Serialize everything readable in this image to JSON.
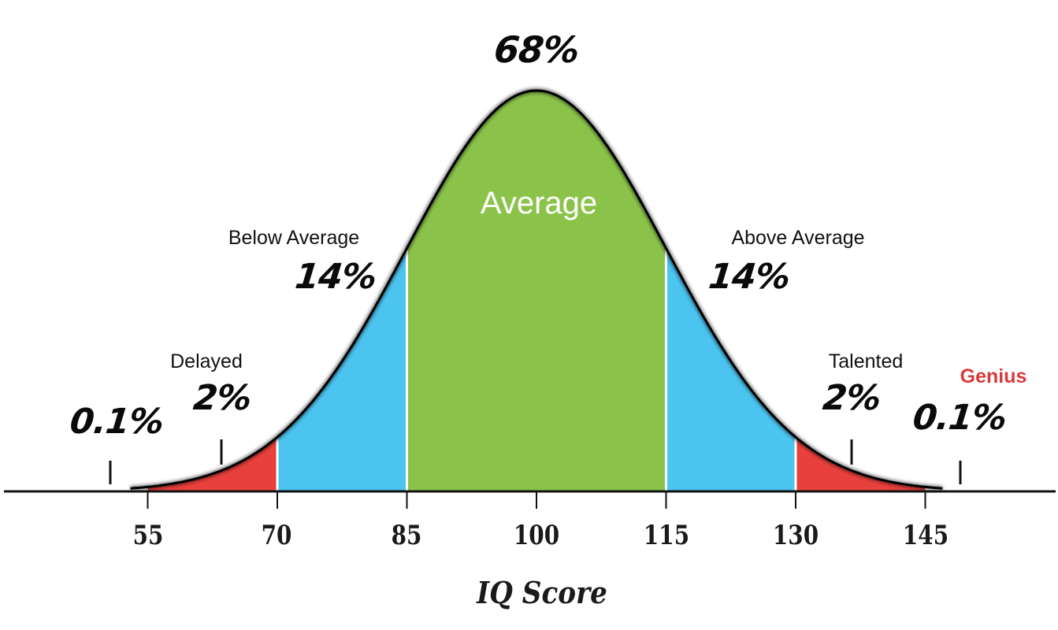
{
  "chart_data": {
    "type": "area",
    "title": "",
    "xlabel": "IQ Score",
    "ylabel": "",
    "x_ticks": [
      55,
      70,
      85,
      100,
      115,
      130,
      145
    ],
    "xlim": [
      40,
      160
    ],
    "grid": false,
    "legend": "none",
    "distribution": {
      "kind": "normal",
      "mean": 100,
      "sd": 15
    },
    "regions": [
      {
        "name": "Genius (low tail)",
        "range": [
          null,
          55
        ],
        "percent": "0.1%",
        "label": "",
        "color": "#ffffff"
      },
      {
        "name": "Delayed",
        "range": [
          55,
          70
        ],
        "percent": "2%",
        "label": "Delayed",
        "color": "#e8403d"
      },
      {
        "name": "Below Average",
        "range": [
          70,
          85
        ],
        "percent": "14%",
        "label": "Below Average",
        "color": "#4bc4f0"
      },
      {
        "name": "Average",
        "range": [
          85,
          115
        ],
        "percent": "68%",
        "label": "Average",
        "color": "#8bc34a"
      },
      {
        "name": "Above Average",
        "range": [
          115,
          130
        ],
        "percent": "14%",
        "label": "Above Average",
        "color": "#4bc4f0"
      },
      {
        "name": "Talented",
        "range": [
          130,
          145
        ],
        "percent": "2%",
        "label": "Talented",
        "color": "#e8403d"
      },
      {
        "name": "Genius",
        "range": [
          145,
          null
        ],
        "percent": "0.1%",
        "label": "Genius",
        "color": "#ffffff"
      }
    ],
    "annotations": [
      {
        "text": "68%",
        "x": 100
      },
      {
        "text": "Average",
        "x": 100
      },
      {
        "text": "Below Average",
        "x": 77.5
      },
      {
        "text": "14%",
        "x": 77.5
      },
      {
        "text": "Above Average",
        "x": 122.5
      },
      {
        "text": "14%",
        "x": 122.5
      },
      {
        "text": "Delayed",
        "x": 63
      },
      {
        "text": "2%",
        "x": 63
      },
      {
        "text": "Talented",
        "x": 137
      },
      {
        "text": "2%",
        "x": 137
      },
      {
        "text": "0.1%",
        "x": 51
      },
      {
        "text": "Genius",
        "x": 149
      },
      {
        "text": "0.1%",
        "x": 149
      }
    ]
  },
  "labels": {
    "top_pct": "68%",
    "average": "Average",
    "below_average": "Below Average",
    "below_average_pct": "14%",
    "above_average": "Above Average",
    "above_average_pct": "14%",
    "delayed": "Delayed",
    "delayed_pct": "2%",
    "talented": "Talented",
    "talented_pct": "2%",
    "low_tail_pct": "0.1%",
    "genius": "Genius",
    "genius_pct": "0.1%"
  },
  "axis": {
    "ticks": [
      "55",
      "70",
      "85",
      "100",
      "115",
      "130",
      "145"
    ],
    "title": "IQ Score"
  },
  "colors": {
    "tail": "#e8403d",
    "side": "#4bc4f0",
    "center": "#8bc34a",
    "genius_text": "#d83a3a",
    "curve": "#000000"
  }
}
